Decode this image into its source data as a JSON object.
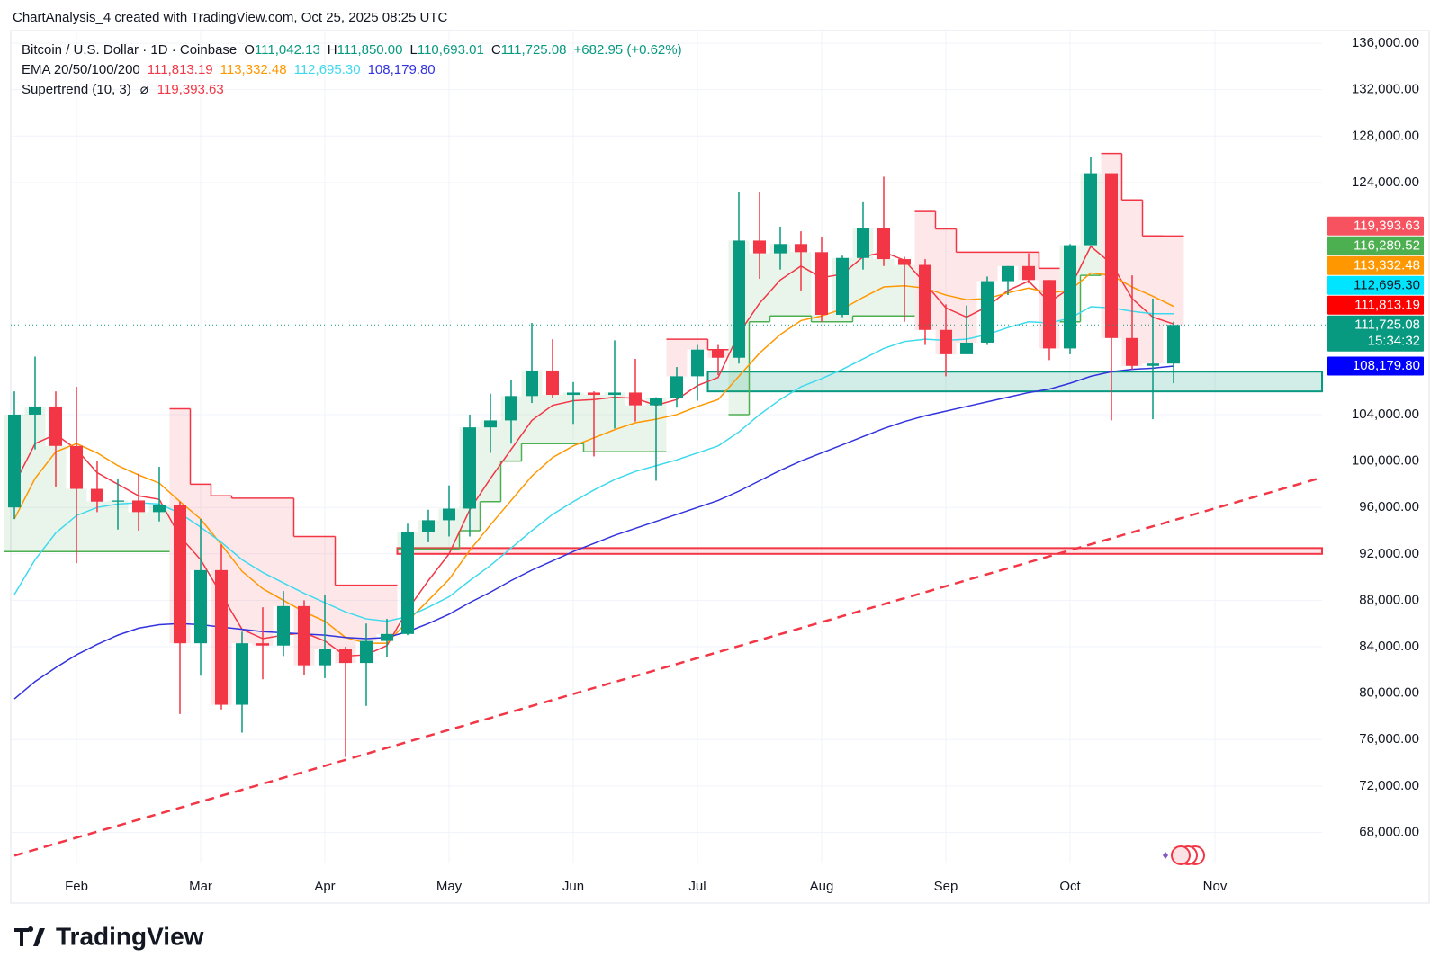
{
  "header": "ChartAnalysis_4 created with TradingView.com, Oct 25, 2025 08:25 UTC",
  "footer": {
    "brand": "TradingView"
  },
  "legend": {
    "symbol": "Bitcoin / U.S. Dollar · 1D · Coinbase",
    "ohlc": [
      {
        "key": "O",
        "value": "111,042.13"
      },
      {
        "key": "H",
        "value": "111,850.00"
      },
      {
        "key": "L",
        "value": "110,693.01"
      },
      {
        "key": "C",
        "value": "111,725.08"
      }
    ],
    "change": "+682.95 (+0.62%)",
    "ema_label": "EMA 20/50/100/200",
    "ema_values": [
      "111,813.19",
      "113,332.48",
      "112,695.30",
      "108,179.80"
    ],
    "supertrend_label": "Supertrend (10, 3)",
    "supertrend_icon": "⌀",
    "supertrend_value": "119,393.63"
  },
  "chart_data": {
    "type": "candlestick",
    "up_color": "#089981",
    "down_color": "#f23645",
    "categories": [
      null,
      null,
      null,
      "Feb",
      null,
      null,
      null,
      null,
      null,
      "Mar",
      null,
      null,
      null,
      null,
      null,
      "Apr",
      null,
      null,
      null,
      null,
      null,
      "May",
      null,
      null,
      null,
      null,
      null,
      "Jun",
      null,
      null,
      null,
      null,
      null,
      "Jul",
      null,
      null,
      null,
      null,
      null,
      "Aug",
      null,
      null,
      null,
      null,
      null,
      "Sep",
      null,
      null,
      null,
      null,
      null,
      "Oct",
      null,
      null,
      null,
      null,
      null,
      null,
      "Nov",
      null,
      null,
      null,
      null,
      null
    ],
    "ohlc": {
      "open": [
        96000,
        104000,
        104700,
        101300,
        97600,
        96500,
        96600,
        95600,
        96200,
        84300,
        90600,
        79000,
        84300,
        84100,
        87500,
        82400,
        83800,
        82600,
        84500,
        85100,
        93900,
        94900,
        95900,
        102900,
        103500,
        105600,
        107800,
        105700,
        105900,
        105700,
        105900,
        104800,
        105400,
        107300,
        109600,
        108900,
        119000,
        117900,
        118700,
        118000,
        112600,
        117500,
        120100,
        117400,
        116900,
        111300,
        109200,
        110200,
        115500,
        116800,
        115600,
        109700,
        118600,
        124800,
        110600,
        108200,
        108400,
        null,
        null,
        null,
        null,
        null,
        null,
        null
      ],
      "high": [
        106000,
        109000,
        106000,
        106400,
        100000,
        98500,
        98900,
        99500,
        96500,
        95000,
        92800,
        85300,
        87400,
        88800,
        88000,
        88500,
        84000,
        86000,
        86400,
        94600,
        95800,
        97900,
        104000,
        105800,
        107000,
        111900,
        110500,
        106800,
        106000,
        110400,
        108800,
        105500,
        108100,
        110000,
        110000,
        123200,
        123200,
        120200,
        119800,
        119300,
        117700,
        122300,
        124500,
        117600,
        117400,
        113500,
        113400,
        115900,
        116800,
        117900,
        115600,
        118700,
        126200,
        124800,
        116000,
        114000,
        112000,
        null,
        null,
        null,
        null,
        null,
        null,
        null
      ],
      "low": [
        95000,
        101000,
        97800,
        91200,
        95600,
        94100,
        94000,
        94800,
        78200,
        81500,
        78600,
        76600,
        81200,
        83200,
        81600,
        81300,
        74500,
        78900,
        83100,
        85000,
        93000,
        93500,
        93500,
        100700,
        101500,
        105000,
        105400,
        103200,
        100400,
        102800,
        103400,
        98300,
        104600,
        105200,
        107400,
        108400,
        115700,
        116500,
        114700,
        112000,
        112400,
        116500,
        116800,
        112000,
        110000,
        107300,
        109200,
        110000,
        114300,
        115300,
        108700,
        109200,
        118600,
        103500,
        107900,
        103600,
        106700,
        null,
        null,
        null,
        null,
        null,
        null,
        null
      ],
      "close": [
        104000,
        104700,
        101300,
        97600,
        96500,
        96600,
        95600,
        96200,
        84300,
        90600,
        79000,
        84300,
        84100,
        87500,
        82400,
        83800,
        82600,
        84500,
        85100,
        93900,
        94900,
        95900,
        102900,
        103500,
        105600,
        107800,
        105700,
        105900,
        105700,
        105900,
        104800,
        105400,
        107300,
        109600,
        108900,
        119000,
        117900,
        118700,
        118000,
        112600,
        117500,
        120100,
        117400,
        116900,
        111300,
        109200,
        110200,
        115500,
        116800,
        115600,
        109700,
        118600,
        124800,
        110600,
        108200,
        108400,
        111725.08,
        null,
        null,
        null,
        null,
        null,
        null,
        null
      ]
    },
    "series": [
      {
        "name": "EMA 20",
        "color": "#f23645",
        "values": [
          98000,
          101500,
          102300,
          101000,
          99000,
          98000,
          97000,
          96700,
          93500,
          91500,
          88500,
          85500,
          84700,
          85000,
          85200,
          84500,
          83200,
          83300,
          84100,
          87200,
          89700,
          92000,
          95800,
          98500,
          101000,
          103500,
          104800,
          105200,
          105300,
          105500,
          105400,
          104800,
          105300,
          106500,
          107200,
          111000,
          113600,
          115600,
          116800,
          115800,
          116100,
          117600,
          118000,
          117300,
          115300,
          113200,
          112400,
          113300,
          114700,
          115500,
          113700,
          114900,
          118500,
          117000,
          114000,
          112400,
          111813.19,
          null,
          null,
          null,
          null,
          null,
          null,
          null
        ]
      },
      {
        "name": "EMA 50",
        "color": "#ff9800",
        "values": [
          95000,
          98500,
          100800,
          101500,
          100700,
          99600,
          98800,
          98100,
          96500,
          95000,
          92800,
          90500,
          89000,
          88000,
          87000,
          86200,
          84800,
          84300,
          84300,
          86200,
          88000,
          89800,
          92300,
          94500,
          96600,
          98700,
          100300,
          101300,
          102000,
          102700,
          103300,
          103600,
          104000,
          104700,
          105300,
          107300,
          109300,
          110900,
          112100,
          112500,
          113100,
          114100,
          115000,
          115100,
          114900,
          114300,
          113900,
          114000,
          114500,
          114900,
          114500,
          114700,
          116200,
          116000,
          115000,
          114200,
          113332.48,
          null,
          null,
          null,
          null,
          null,
          null,
          null
        ]
      },
      {
        "name": "EMA 100",
        "color": "#3fd9ee",
        "values": [
          88500,
          91500,
          93800,
          95300,
          96000,
          96300,
          96400,
          96300,
          95500,
          94300,
          93000,
          91500,
          90400,
          89500,
          88600,
          87800,
          87000,
          86400,
          86200,
          86600,
          87400,
          88300,
          89700,
          91000,
          92500,
          94000,
          95400,
          96500,
          97500,
          98400,
          99100,
          99600,
          100100,
          100700,
          101300,
          102500,
          104000,
          105300,
          106400,
          107100,
          107900,
          108800,
          109700,
          110300,
          110500,
          110400,
          110500,
          110900,
          111500,
          112000,
          111900,
          112300,
          113300,
          113200,
          112900,
          112700,
          112695.3,
          null,
          null,
          null,
          null,
          null,
          null,
          null
        ]
      },
      {
        "name": "EMA 200",
        "color": "#3333dd",
        "values": [
          79500,
          81000,
          82200,
          83300,
          84200,
          85000,
          85600,
          85900,
          86000,
          85900,
          85700,
          85500,
          85300,
          85200,
          85100,
          85000,
          84800,
          84700,
          84800,
          85300,
          86000,
          86800,
          87800,
          88700,
          89700,
          90600,
          91400,
          92200,
          92900,
          93600,
          94200,
          94800,
          95400,
          96000,
          96600,
          97400,
          98300,
          99200,
          100000,
          100700,
          101400,
          102100,
          102800,
          103400,
          103900,
          104300,
          104700,
          105100,
          105500,
          105900,
          106200,
          106700,
          107300,
          107700,
          107900,
          108000,
          108179.8,
          null,
          null,
          null,
          null,
          null,
          null,
          null
        ]
      }
    ],
    "supertrend": {
      "up_color": "#4caf50",
      "down_color": "#f23645",
      "values": [
        92200,
        92200,
        92200,
        92200,
        92200,
        92200,
        92200,
        92200,
        104500,
        98000,
        97000,
        96800,
        96800,
        96800,
        93500,
        93500,
        89300,
        89300,
        89300,
        92400,
        92400,
        92400,
        94000,
        96500,
        100000,
        101500,
        101500,
        101500,
        100800,
        100800,
        100800,
        100800,
        110500,
        110500,
        109600,
        104000,
        112000,
        112500,
        112500,
        112000,
        112000,
        112500,
        112500,
        112500,
        121500,
        120000,
        118000,
        118000,
        118000,
        118000,
        116600,
        112000,
        116000,
        126500,
        122500,
        119400,
        119393.63,
        null,
        null,
        null,
        null,
        null,
        null,
        null
      ]
    },
    "support_zone": {
      "from": 34,
      "values": [
        106000,
        107700
      ],
      "color": "#089981"
    },
    "resistance_zone": {
      "from": 19,
      "values": [
        92000,
        92500
      ],
      "color": "#f23645"
    },
    "trendline": {
      "x": [
        0,
        63
      ],
      "values": [
        66000,
        98500
      ],
      "color": "#f23645"
    },
    "ylim": [
      66100,
      137400
    ],
    "yticks": [
      {
        "value": 68000,
        "label": "68,000.00"
      },
      {
        "value": 72000,
        "label": "72,000.00"
      },
      {
        "value": 76000,
        "label": "76,000.00"
      },
      {
        "value": 80000,
        "label": "80,000.00"
      },
      {
        "value": 84000,
        "label": "84,000.00"
      },
      {
        "value": 88000,
        "label": "88,000.00"
      },
      {
        "value": 92000,
        "label": "92,000.00"
      },
      {
        "value": 96000,
        "label": "96,000.00"
      },
      {
        "value": 100000,
        "label": "100,000.00"
      },
      {
        "value": 104000,
        "label": "104,000.00"
      },
      {
        "value": 124000,
        "label": "124,000.00"
      },
      {
        "value": 128000,
        "label": "128,000.00"
      },
      {
        "value": 132000,
        "label": "132,000.00"
      },
      {
        "value": 136000,
        "label": "136,000.00"
      }
    ],
    "grid": true,
    "price_tags": [
      {
        "value": 119393.63,
        "label": "119,393.63",
        "color": "#f7525f",
        "text_color": "#ffffff"
      },
      {
        "value": 116289.52,
        "label": "116,289.52",
        "color": "#4caf50",
        "text_color": "#ffffff"
      },
      {
        "value": 113332.48,
        "label": "113,332.48",
        "color": "#ff9800",
        "text_color": "#ffffff"
      },
      {
        "value": 112695.3,
        "label": "112,695.30",
        "color": "#00e5ff",
        "text_color": "#131722"
      },
      {
        "value": 111813.19,
        "label": "111,813.19",
        "color": "#ff0000",
        "text_color": "#ffffff"
      },
      {
        "value": 111725.08,
        "label": "111,725.08",
        "countdown": "15:34:32",
        "color": "#089981",
        "text_color": "#ffffff"
      },
      {
        "value": 108179.8,
        "label": "108,179.80",
        "color": "#0000ff",
        "text_color": "#ffffff"
      }
    ]
  }
}
